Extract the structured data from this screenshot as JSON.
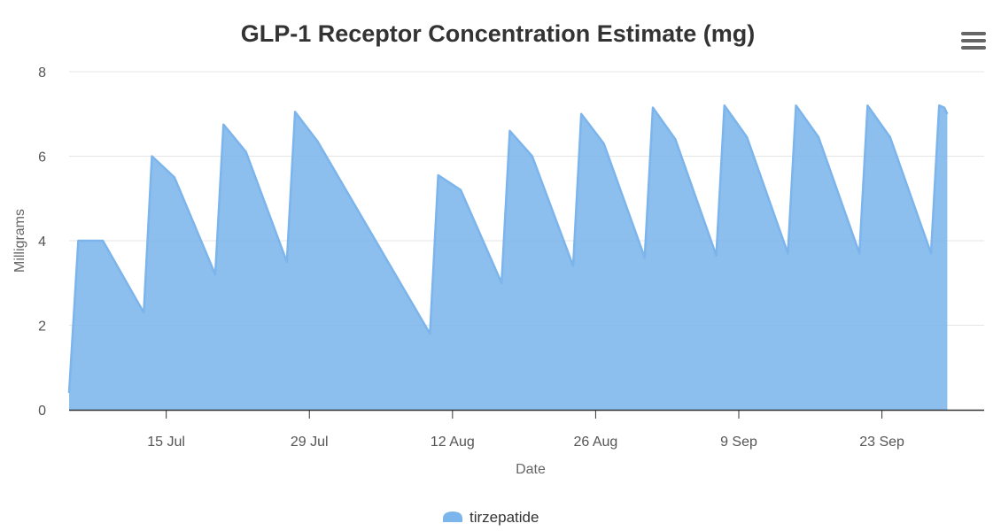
{
  "chart_data": {
    "type": "area",
    "title": "GLP-1 Receptor Concentration Estimate (mg)",
    "xlabel": "Date",
    "ylabel": "Milligrams",
    "ylim": [
      0,
      8
    ],
    "yticks": [
      0,
      2,
      4,
      6,
      8
    ],
    "xlim_days": [
      0,
      89.5
    ],
    "xticks": [
      {
        "day": 9.5,
        "label": "15 Jul"
      },
      {
        "day": 23.5,
        "label": "29 Jul"
      },
      {
        "day": 37.5,
        "label": "12 Aug"
      },
      {
        "day": 51.5,
        "label": "26 Aug"
      },
      {
        "day": 65.5,
        "label": "9 Sep"
      },
      {
        "day": 79.5,
        "label": "23 Sep"
      }
    ],
    "series": [
      {
        "name": "tirzepatide",
        "color": "#7cb5ec",
        "points": [
          [
            0,
            0.4
          ],
          [
            0.9,
            4.0
          ],
          [
            3.3,
            4.0
          ],
          [
            7.3,
            2.3
          ],
          [
            8.1,
            6.0
          ],
          [
            10.3,
            5.5
          ],
          [
            14.3,
            3.2
          ],
          [
            15.1,
            6.75
          ],
          [
            17.3,
            6.1
          ],
          [
            21.3,
            3.5
          ],
          [
            22.1,
            7.05
          ],
          [
            24.3,
            6.35
          ],
          [
            35.3,
            1.8
          ],
          [
            36.1,
            5.55
          ],
          [
            38.3,
            5.2
          ],
          [
            42.3,
            3.0
          ],
          [
            43.1,
            6.6
          ],
          [
            45.3,
            6.0
          ],
          [
            49.3,
            3.4
          ],
          [
            50.1,
            7.0
          ],
          [
            52.3,
            6.3
          ],
          [
            56.3,
            3.6
          ],
          [
            57.1,
            7.15
          ],
          [
            59.3,
            6.4
          ],
          [
            63.3,
            3.65
          ],
          [
            64.1,
            7.2
          ],
          [
            66.3,
            6.45
          ],
          [
            70.3,
            3.7
          ],
          [
            71.1,
            7.2
          ],
          [
            73.3,
            6.45
          ],
          [
            77.3,
            3.7
          ],
          [
            78.1,
            7.2
          ],
          [
            80.3,
            6.45
          ],
          [
            84.3,
            3.7
          ],
          [
            85.1,
            7.2
          ],
          [
            85.6,
            7.15
          ],
          [
            85.9,
            7.0
          ]
        ]
      }
    ],
    "legend": "bottom-center"
  },
  "ui": {
    "menu_icon": "hamburger-menu-icon"
  }
}
